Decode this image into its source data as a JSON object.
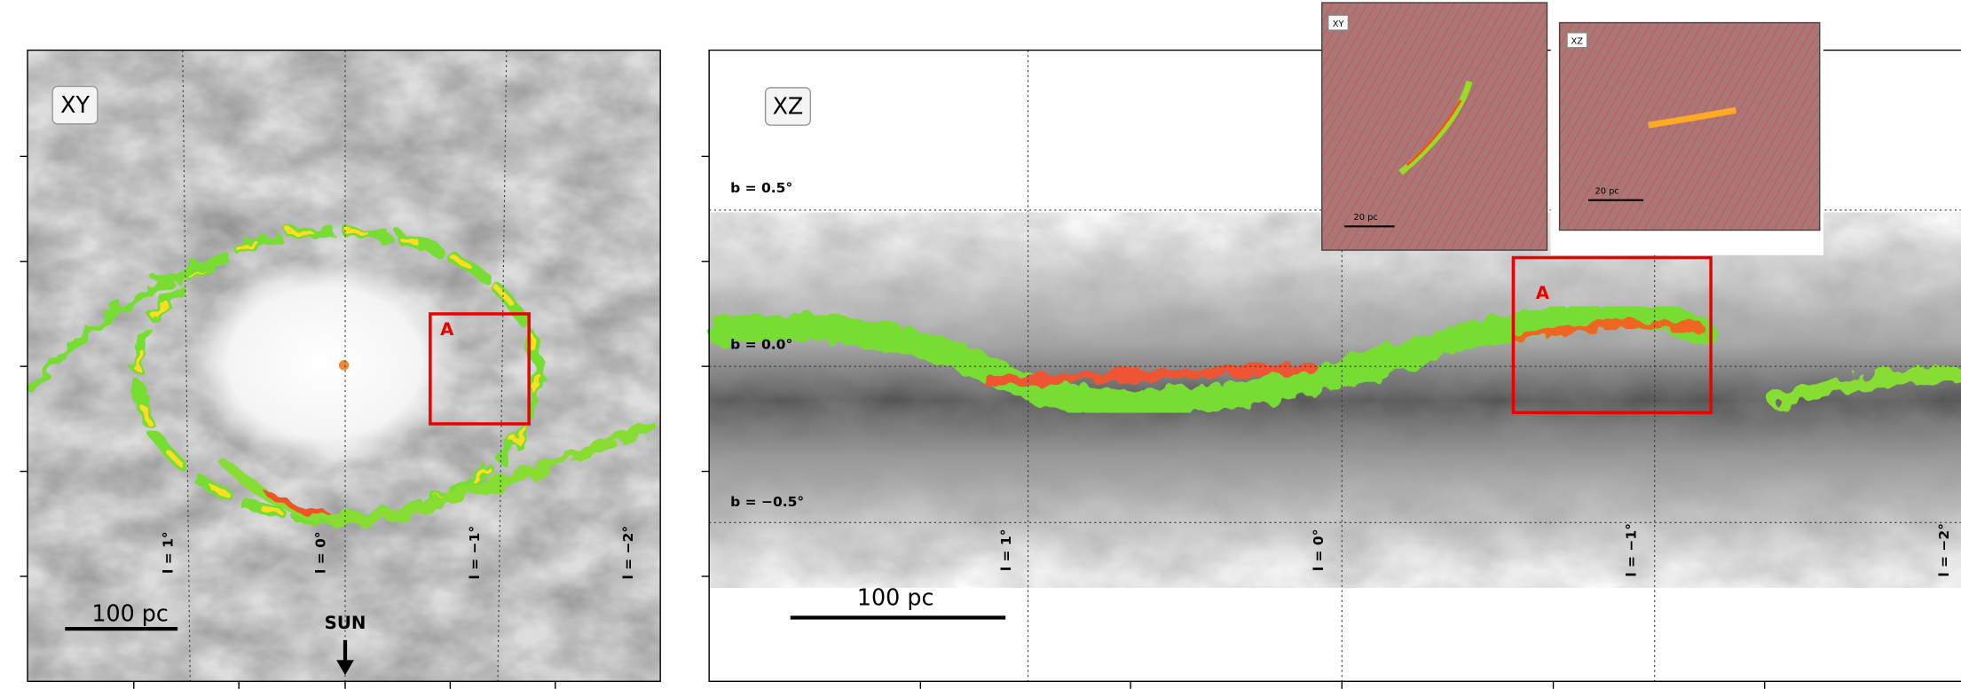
{
  "xy_panel": {
    "label": "XY",
    "region": "A",
    "scale": "100 pc",
    "sun": "SUN",
    "longitudes": [
      "l = 1°",
      "l = 0°",
      "l = −1°",
      "l = −2°"
    ]
  },
  "xz_panel": {
    "label": "XZ",
    "region": "A",
    "scale": "100 pc",
    "longitudes": [
      "l = 1°",
      "l = 0°",
      "l = −1°",
      "l = −2°"
    ],
    "latitudes": [
      "b = 0.5°",
      "b = 0.0°",
      "b = −0.5°"
    ]
  },
  "insets": [
    {
      "label": "XY",
      "scale": "20 pc"
    },
    {
      "label": "XZ",
      "scale": "20 pc"
    }
  ]
}
